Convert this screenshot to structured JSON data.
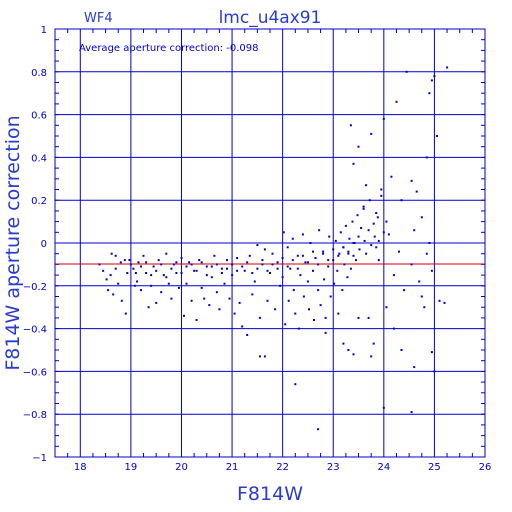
{
  "chart_data": {
    "type": "scatter",
    "title": "lmc_u4ax91",
    "chip_label": "WF4",
    "annotation": "Average aperture correction: -0.098",
    "xlabel": "F814W",
    "ylabel": "F814W aperture correction",
    "xlim": [
      17.5,
      26
    ],
    "ylim": [
      -1,
      1
    ],
    "xticks": [
      "18",
      "19",
      "20",
      "21",
      "22",
      "23",
      "24",
      "25",
      "26"
    ],
    "yticks": [
      "1",
      "0.8",
      "0.6",
      "0.4",
      "0.2",
      "0",
      "−0.2",
      "−0.4",
      "−0.6",
      "−0.8",
      "−1"
    ],
    "ytick_values": [
      1,
      0.8,
      0.6,
      0.4,
      0.2,
      0,
      -0.2,
      -0.4,
      -0.6,
      -0.8,
      -1
    ],
    "grid": true,
    "reference_line": -0.098,
    "colors": {
      "axes": "#0000cc",
      "points": "#0000cc",
      "reference": "#cc0000",
      "text": "#2a3bd0"
    },
    "series": [
      {
        "points": [
          [
            18.38,
            -0.1
          ],
          [
            18.52,
            -0.17
          ],
          [
            18.55,
            -0.22
          ],
          [
            18.6,
            -0.15
          ],
          [
            18.62,
            -0.05
          ],
          [
            18.65,
            -0.24
          ],
          [
            18.7,
            -0.12
          ],
          [
            18.75,
            -0.19
          ],
          [
            18.8,
            -0.09
          ],
          [
            18.82,
            -0.27
          ],
          [
            18.88,
            -0.08
          ],
          [
            18.9,
            -0.33
          ],
          [
            18.93,
            -0.14
          ],
          [
            18.97,
            -0.08
          ],
          [
            19.0,
            -0.1
          ],
          [
            19.05,
            -0.12
          ],
          [
            19.08,
            -0.2
          ],
          [
            19.12,
            -0.18
          ],
          [
            19.15,
            -0.09
          ],
          [
            19.2,
            -0.22
          ],
          [
            19.25,
            -0.06
          ],
          [
            19.3,
            -0.14
          ],
          [
            19.35,
            -0.3
          ],
          [
            19.4,
            -0.2
          ],
          [
            19.45,
            -0.11
          ],
          [
            19.5,
            -0.28
          ],
          [
            19.55,
            -0.08
          ],
          [
            19.6,
            -0.23
          ],
          [
            19.65,
            -0.15
          ],
          [
            19.7,
            -0.05
          ],
          [
            19.75,
            -0.19
          ],
          [
            19.8,
            -0.26
          ],
          [
            19.85,
            -0.1
          ],
          [
            19.9,
            -0.14
          ],
          [
            19.95,
            -0.21
          ],
          [
            20.0,
            -0.07
          ],
          [
            20.05,
            -0.34
          ],
          [
            20.1,
            -0.19
          ],
          [
            20.15,
            -0.09
          ],
          [
            20.2,
            -0.27
          ],
          [
            20.25,
            -0.13
          ],
          [
            20.3,
            -0.36
          ],
          [
            20.35,
            -0.08
          ],
          [
            20.4,
            -0.21
          ],
          [
            20.45,
            -0.26
          ],
          [
            20.5,
            -0.11
          ],
          [
            20.55,
            -0.29
          ],
          [
            20.6,
            -0.16
          ],
          [
            20.65,
            -0.06
          ],
          [
            20.7,
            -0.23
          ],
          [
            20.75,
            -0.31
          ],
          [
            20.8,
            -0.12
          ],
          [
            20.85,
            -0.19
          ],
          [
            20.9,
            -0.08
          ],
          [
            20.95,
            -0.26
          ],
          [
            21.0,
            -0.15
          ],
          [
            21.05,
            -0.33
          ],
          [
            21.1,
            -0.07
          ],
          [
            21.15,
            -0.28
          ],
          [
            21.2,
            -0.39
          ],
          [
            21.25,
            -0.13
          ],
          [
            21.3,
            -0.43
          ],
          [
            21.35,
            -0.06
          ],
          [
            21.4,
            -0.24
          ],
          [
            21.45,
            -0.18
          ],
          [
            21.5,
            -0.01
          ],
          [
            21.55,
            -0.35
          ],
          [
            21.6,
            -0.1
          ],
          [
            21.65,
            -0.03
          ],
          [
            21.7,
            -0.27
          ],
          [
            21.75,
            -0.14
          ],
          [
            21.8,
            -0.05
          ],
          [
            21.85,
            -0.31
          ],
          [
            21.9,
            -0.09
          ],
          [
            21.95,
            -0.2
          ],
          [
            22.0,
            -0.16
          ],
          [
            22.02,
            0.05
          ],
          [
            22.05,
            -0.38
          ],
          [
            22.1,
            -0.02
          ],
          [
            22.12,
            -0.27
          ],
          [
            22.15,
            -0.12
          ],
          [
            22.2,
            0.02
          ],
          [
            22.22,
            -0.22
          ],
          [
            22.25,
            -0.33
          ],
          [
            22.3,
            -0.06
          ],
          [
            22.32,
            -0.4
          ],
          [
            22.35,
            -0.15
          ],
          [
            22.4,
            0.04
          ],
          [
            22.42,
            -0.25
          ],
          [
            22.45,
            -0.09
          ],
          [
            22.5,
            -0.18
          ],
          [
            22.52,
            -0.31
          ],
          [
            22.55,
            0.0
          ],
          [
            22.6,
            -0.13
          ],
          [
            22.62,
            -0.36
          ],
          [
            22.65,
            -0.07
          ],
          [
            22.7,
            -0.22
          ],
          [
            22.72,
            0.06
          ],
          [
            22.75,
            -0.29
          ],
          [
            22.8,
            -0.04
          ],
          [
            22.82,
            -0.17
          ],
          [
            22.85,
            -0.42
          ],
          [
            22.9,
            -0.11
          ],
          [
            22.92,
            0.03
          ],
          [
            22.95,
            -0.25
          ],
          [
            23.0,
            -0.08
          ],
          [
            23.02,
            -0.19
          ],
          [
            23.05,
            0.01
          ],
          [
            23.08,
            -0.13
          ],
          [
            23.1,
            -0.33
          ],
          [
            23.12,
            -0.05
          ],
          [
            23.15,
            0.05
          ],
          [
            23.18,
            -0.22
          ],
          [
            23.2,
            -0.02
          ],
          [
            23.22,
            -0.1
          ],
          [
            23.25,
            0.08
          ],
          [
            23.28,
            -0.16
          ],
          [
            23.3,
            -0.04
          ],
          [
            23.32,
            0.02
          ],
          [
            23.35,
            -0.12
          ],
          [
            23.38,
            0.1
          ],
          [
            23.4,
            -0.06
          ],
          [
            23.42,
            0.0
          ],
          [
            23.45,
            -0.08
          ],
          [
            23.48,
            0.13
          ],
          [
            23.5,
            0.03
          ],
          [
            23.52,
            -0.03
          ],
          [
            23.55,
            0.07
          ],
          [
            23.6,
            0.16
          ],
          [
            23.62,
            0.01
          ],
          [
            23.65,
            -0.05
          ],
          [
            23.7,
            0.06
          ],
          [
            23.72,
            0.2
          ],
          [
            23.75,
            -0.01
          ],
          [
            23.8,
            0.09
          ],
          [
            23.82,
            0.03
          ],
          [
            23.85,
            -0.02
          ],
          [
            23.88,
            0.12
          ],
          [
            23.9,
            0.01
          ],
          [
            23.95,
            0.25
          ],
          [
            24.0,
            0.05
          ],
          [
            18.45,
            -0.13
          ],
          [
            18.7,
            -0.06
          ],
          [
            19.1,
            -0.14
          ],
          [
            19.2,
            -0.11
          ],
          [
            19.3,
            -0.09
          ],
          [
            19.4,
            -0.15
          ],
          [
            19.5,
            -0.13
          ],
          [
            19.6,
            -0.1
          ],
          [
            19.7,
            -0.16
          ],
          [
            19.8,
            -0.12
          ],
          [
            19.9,
            -0.09
          ],
          [
            20.0,
            -0.14
          ],
          [
            20.1,
            -0.11
          ],
          [
            20.2,
            -0.1
          ],
          [
            20.3,
            -0.13
          ],
          [
            20.4,
            -0.09
          ],
          [
            20.5,
            -0.15
          ],
          [
            20.6,
            -0.11
          ],
          [
            20.7,
            -0.1
          ],
          [
            20.8,
            -0.14
          ],
          [
            20.9,
            -0.12
          ],
          [
            21.0,
            -0.1
          ],
          [
            21.1,
            -0.13
          ],
          [
            21.2,
            -0.11
          ],
          [
            21.3,
            -0.09
          ],
          [
            21.4,
            -0.14
          ],
          [
            21.5,
            -0.12
          ],
          [
            21.6,
            -0.08
          ],
          [
            21.7,
            -0.13
          ],
          [
            21.8,
            -0.1
          ],
          [
            21.9,
            -0.12
          ],
          [
            22.0,
            -0.07
          ],
          [
            22.1,
            -0.11
          ],
          [
            22.2,
            -0.08
          ],
          [
            22.3,
            -0.12
          ],
          [
            22.4,
            -0.06
          ],
          [
            22.5,
            -0.09
          ],
          [
            22.6,
            -0.04
          ],
          [
            22.7,
            -0.1
          ],
          [
            22.8,
            -0.05
          ],
          [
            22.9,
            -0.08
          ],
          [
            23.0,
            -0.03
          ],
          [
            23.1,
            -0.06
          ],
          [
            23.2,
            -0.02
          ],
          [
            23.3,
            -0.05
          ],
          [
            23.4,
            0.0
          ],
          [
            23.35,
            0.55
          ],
          [
            23.4,
            0.37
          ],
          [
            23.5,
            0.45
          ],
          [
            23.6,
            0.17
          ],
          [
            23.65,
            0.27
          ],
          [
            23.75,
            0.51
          ],
          [
            23.85,
            0.14
          ],
          [
            23.95,
            0.22
          ],
          [
            24.0,
            0.58
          ],
          [
            24.05,
            0.1
          ],
          [
            24.15,
            0.31
          ],
          [
            24.25,
            0.66
          ],
          [
            24.35,
            0.2
          ],
          [
            24.45,
            0.8
          ],
          [
            24.55,
            0.29
          ],
          [
            24.65,
            0.24
          ],
          [
            24.75,
            0.12
          ],
          [
            24.85,
            0.4
          ],
          [
            24.9,
            0.7
          ],
          [
            24.95,
            0.76
          ],
          [
            25.0,
            0.78
          ],
          [
            25.05,
            0.5
          ],
          [
            25.25,
            0.82
          ],
          [
            21.55,
            -0.53
          ],
          [
            21.65,
            -0.53
          ],
          [
            22.25,
            -0.66
          ],
          [
            22.7,
            -0.87
          ],
          [
            22.85,
            -0.35
          ],
          [
            23.2,
            -0.47
          ],
          [
            23.3,
            -0.5
          ],
          [
            23.4,
            -0.52
          ],
          [
            23.5,
            -0.35
          ],
          [
            23.7,
            -0.35
          ],
          [
            23.75,
            -0.53
          ],
          [
            23.8,
            -0.47
          ],
          [
            24.0,
            -0.77
          ],
          [
            24.05,
            -0.3
          ],
          [
            24.2,
            -0.4
          ],
          [
            24.35,
            -0.5
          ],
          [
            24.55,
            -0.79
          ],
          [
            24.6,
            -0.58
          ],
          [
            24.8,
            -0.3
          ],
          [
            24.95,
            -0.51
          ],
          [
            25.0,
            -0.6
          ],
          [
            24.95,
            -0.13
          ],
          [
            25.1,
            -0.27
          ],
          [
            25.2,
            -0.28
          ],
          [
            24.75,
            -0.25
          ],
          [
            24.55,
            -0.1
          ],
          [
            24.4,
            -0.22
          ],
          [
            24.3,
            -0.04
          ],
          [
            24.2,
            -0.15
          ],
          [
            24.1,
            0.04
          ],
          [
            23.9,
            -0.08
          ],
          [
            24.6,
            0.06
          ],
          [
            24.85,
            -0.05
          ],
          [
            24.9,
            0.0
          ],
          [
            24.7,
            -0.18
          ]
        ]
      }
    ]
  }
}
